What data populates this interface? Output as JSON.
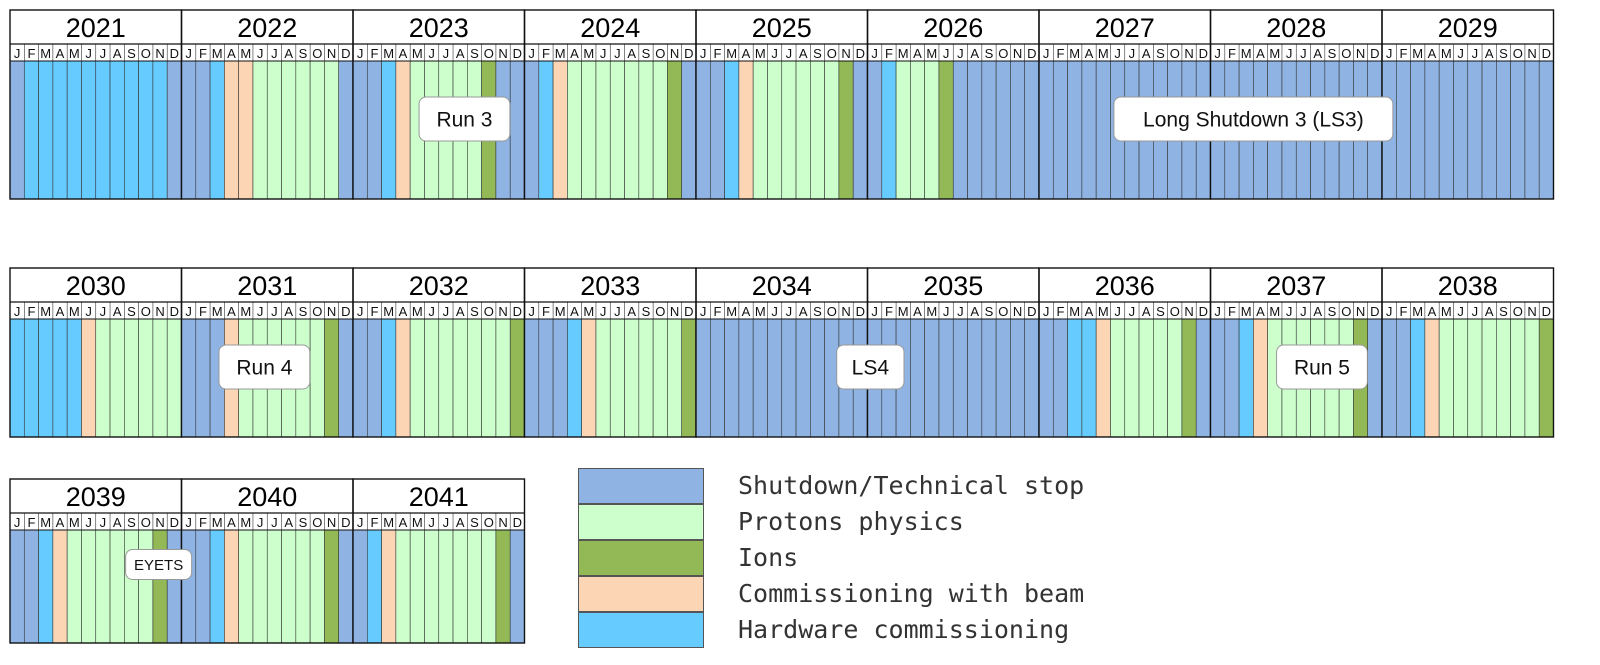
{
  "colors": {
    "shutdown": "#8fb4e3",
    "protons": "#ccffcc",
    "ions": "#93b956",
    "commissioning": "#fcd5b5",
    "hardware": "#66ccff"
  },
  "month_letters": [
    "J",
    "F",
    "M",
    "A",
    "M",
    "J",
    "J",
    "A",
    "S",
    "O",
    "N",
    "D"
  ],
  "chart_data": {
    "type": "timeline",
    "title": "",
    "category_codes": {
      "S": "shutdown",
      "P": "protons",
      "I": "ions",
      "C": "commissioning",
      "H": "hardware"
    },
    "rows": [
      {
        "years": [
          {
            "year": "2021",
            "months": [
              "S",
              "H",
              "H",
              "H",
              "H",
              "H",
              "H",
              "H",
              "H",
              "H",
              "H",
              "S"
            ]
          },
          {
            "year": "2022",
            "months": [
              "S",
              "S",
              "H",
              "C",
              "C",
              "P",
              "P",
              "P",
              "P",
              "P",
              "P",
              "S"
            ]
          },
          {
            "year": "2023",
            "months": [
              "S",
              "S",
              "H",
              "C",
              "P",
              "P",
              "P",
              "P",
              "P",
              "I",
              "S",
              "S"
            ]
          },
          {
            "year": "2024",
            "months": [
              "S",
              "H",
              "C",
              "P",
              "P",
              "P",
              "P",
              "P",
              "P",
              "P",
              "I",
              "S"
            ]
          },
          {
            "year": "2025",
            "months": [
              "S",
              "S",
              "H",
              "C",
              "P",
              "P",
              "P",
              "P",
              "P",
              "P",
              "I",
              "S"
            ]
          },
          {
            "year": "2026",
            "months": [
              "S",
              "H",
              "P",
              "P",
              "P",
              "I",
              "S",
              "S",
              "S",
              "S",
              "S",
              "S"
            ]
          },
          {
            "year": "2027",
            "months": [
              "S",
              "S",
              "S",
              "S",
              "S",
              "S",
              "S",
              "S",
              "S",
              "S",
              "S",
              "S"
            ]
          },
          {
            "year": "2028",
            "months": [
              "S",
              "S",
              "S",
              "S",
              "S",
              "S",
              "S",
              "S",
              "S",
              "S",
              "S",
              "S"
            ]
          },
          {
            "year": "2029",
            "months": [
              "S",
              "S",
              "S",
              "S",
              "S",
              "S",
              "S",
              "S",
              "S",
              "S",
              "S",
              "S"
            ]
          }
        ],
        "labels": [
          {
            "text": "Run 3",
            "month_pos": 31.8
          },
          {
            "text": "Long Shutdown 3 (LS3)",
            "month_pos": 87.0
          }
        ]
      },
      {
        "years": [
          {
            "year": "2030",
            "months": [
              "H",
              "H",
              "H",
              "H",
              "H",
              "C",
              "P",
              "P",
              "P",
              "P",
              "P",
              "P"
            ]
          },
          {
            "year": "2031",
            "months": [
              "S",
              "S",
              "S",
              "C",
              "P",
              "P",
              "P",
              "P",
              "P",
              "P",
              "I",
              "S"
            ]
          },
          {
            "year": "2032",
            "months": [
              "S",
              "S",
              "H",
              "C",
              "P",
              "P",
              "P",
              "P",
              "P",
              "P",
              "P",
              "I"
            ]
          },
          {
            "year": "2033",
            "months": [
              "S",
              "S",
              "S",
              "H",
              "C",
              "P",
              "P",
              "P",
              "P",
              "P",
              "P",
              "I"
            ]
          },
          {
            "year": "2034",
            "months": [
              "S",
              "S",
              "S",
              "S",
              "S",
              "S",
              "S",
              "S",
              "S",
              "S",
              "S",
              "S"
            ]
          },
          {
            "year": "2035",
            "months": [
              "S",
              "S",
              "S",
              "S",
              "S",
              "S",
              "S",
              "S",
              "S",
              "S",
              "S",
              "S"
            ]
          },
          {
            "year": "2036",
            "months": [
              "S",
              "S",
              "H",
              "H",
              "C",
              "P",
              "P",
              "P",
              "P",
              "P",
              "I",
              "S"
            ]
          },
          {
            "year": "2037",
            "months": [
              "S",
              "S",
              "H",
              "C",
              "P",
              "P",
              "P",
              "P",
              "P",
              "P",
              "I",
              "S"
            ]
          },
          {
            "year": "2038",
            "months": [
              "S",
              "S",
              "H",
              "C",
              "P",
              "P",
              "P",
              "P",
              "P",
              "P",
              "P",
              "I"
            ]
          }
        ],
        "labels": [
          {
            "text": "Run 4",
            "month_pos": 17.8
          },
          {
            "text": "LS4",
            "month_pos": 60.2
          },
          {
            "text": "Run 5",
            "month_pos": 91.8
          }
        ]
      },
      {
        "years": [
          {
            "year": "2039",
            "months": [
              "S",
              "S",
              "H",
              "C",
              "P",
              "P",
              "P",
              "P",
              "P",
              "P",
              "I",
              "S"
            ]
          },
          {
            "year": "2040",
            "months": [
              "S",
              "S",
              "H",
              "C",
              "P",
              "P",
              "P",
              "P",
              "P",
              "P",
              "I",
              "S"
            ]
          },
          {
            "year": "2041",
            "months": [
              "S",
              "H",
              "C",
              "P",
              "P",
              "P",
              "P",
              "P",
              "P",
              "P",
              "I",
              "S"
            ]
          }
        ],
        "labels": [
          {
            "text": "EYETS",
            "month_pos": 10.4,
            "small": true
          }
        ]
      }
    ],
    "legend": [
      {
        "key": "shutdown",
        "label": "Shutdown/Technical stop"
      },
      {
        "key": "protons",
        "label": "Protons physics"
      },
      {
        "key": "ions",
        "label": "Ions"
      },
      {
        "key": "commissioning",
        "label": "Commissioning with beam"
      },
      {
        "key": "hardware",
        "label": "Hardware commissioning"
      }
    ]
  }
}
